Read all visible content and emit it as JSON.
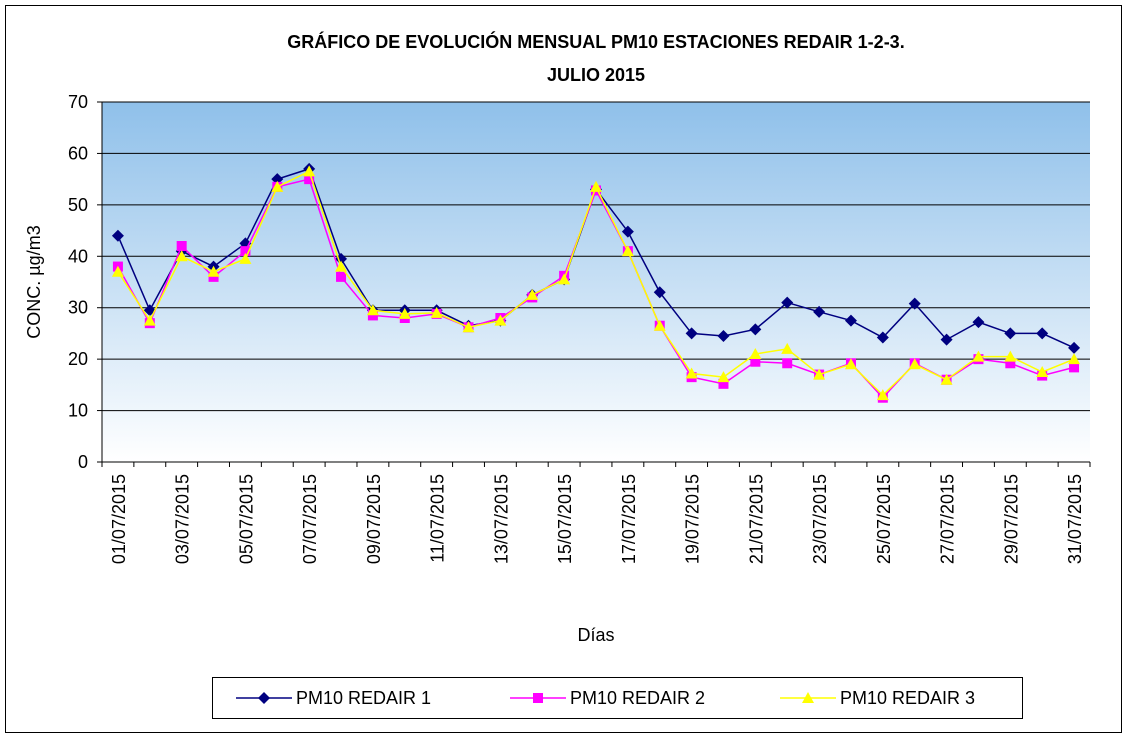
{
  "chart_data": {
    "type": "line",
    "title": "GRÁFICO DE EVOLUCIÓN MENSUAL PM10 ESTACIONES REDAIR 1-2-3.",
    "subtitle": "JULIO 2015",
    "y_label": "CONC. µg/m3",
    "x_label": "Días",
    "categories": [
      "01/07/2015",
      null,
      "03/07/2015",
      null,
      "05/07/2015",
      null,
      "07/07/2015",
      null,
      "09/07/2015",
      null,
      "11/07/2015",
      null,
      "13/07/2015",
      null,
      "15/07/2015",
      null,
      "17/07/2015",
      null,
      "19/07/2015",
      null,
      "21/07/2015",
      null,
      "23/07/2015",
      null,
      "25/07/2015",
      null,
      "27/07/2015",
      null,
      "29/07/2015",
      null,
      "31/07/2015"
    ],
    "ylim": [
      0,
      70
    ],
    "yticks": [
      0,
      10,
      20,
      30,
      40,
      50,
      60,
      70
    ],
    "grid": true,
    "legend": "bottom",
    "series": [
      {
        "name": "PM10 REDAIR 1",
        "color": "#000080",
        "marker": "diamond",
        "values": [
          44,
          29.5,
          41,
          38,
          42.5,
          55,
          57,
          39.5,
          29.5,
          29.5,
          29.5,
          26.5,
          27.5,
          32.5,
          35.5,
          53,
          44.8,
          33,
          25,
          24.5,
          25.8,
          31,
          29.2,
          27.5,
          24.2,
          30.8,
          23.8,
          27.2,
          25,
          25,
          22.2
        ]
      },
      {
        "name": "PM10 REDAIR 2",
        "color": "#ff00ff",
        "marker": "square",
        "values": [
          38,
          27,
          42,
          36,
          41,
          53.5,
          55,
          36,
          28.5,
          28,
          28.8,
          26.2,
          28,
          32,
          36.2,
          52.8,
          41,
          26.5,
          16.5,
          15.2,
          19.5,
          19.2,
          17,
          19.2,
          12.5,
          19.2,
          16,
          20,
          19.2,
          16.8,
          18.4
        ]
      },
      {
        "name": "PM10 REDAIR 3",
        "color": "#ffff00",
        "marker": "triangle",
        "values": [
          37,
          27.5,
          40,
          37,
          39.5,
          53.5,
          56.5,
          38,
          29.5,
          28.8,
          29,
          26.2,
          27.5,
          32.5,
          35.5,
          53.5,
          41,
          26.5,
          17.2,
          16.5,
          21,
          22,
          17,
          19,
          13,
          19,
          16,
          20.5,
          20.5,
          17.5,
          20
        ]
      }
    ]
  }
}
